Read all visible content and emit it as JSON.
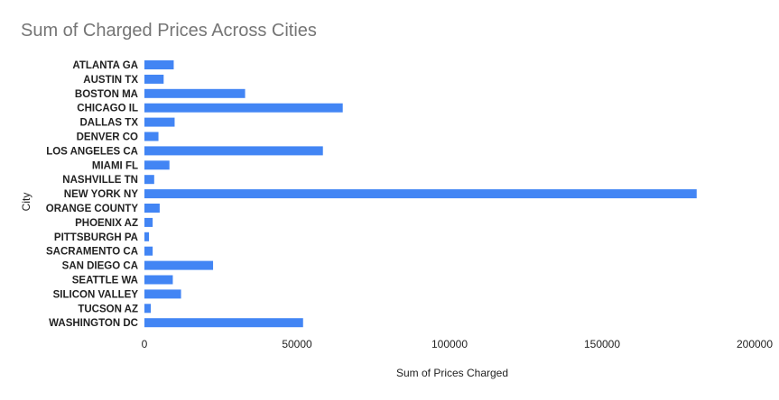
{
  "chart_data": {
    "type": "bar",
    "orientation": "horizontal",
    "title": "Sum of Charged Prices Across Cities",
    "xlabel": "Sum of Prices Charged",
    "ylabel": "City",
    "categories": [
      "ATLANTA GA",
      "AUSTIN TX",
      "BOSTON MA",
      "CHICAGO IL",
      "DALLAS TX",
      "DENVER CO",
      "LOS ANGELES CA",
      "MIAMI FL",
      "NASHVILLE TN",
      "NEW YORK NY",
      "ORANGE COUNTY",
      "PHOENIX AZ",
      "PITTSBURGH PA",
      "SACRAMENTO CA",
      "SAN DIEGO CA",
      "SEATTLE WA",
      "SILICON VALLEY",
      "TUCSON AZ",
      "WASHINGTON DC"
    ],
    "values": [
      9600,
      6300,
      33000,
      65000,
      9900,
      4600,
      58500,
      8200,
      3200,
      181000,
      5000,
      2700,
      1500,
      2700,
      22500,
      9300,
      12000,
      2100,
      52000
    ],
    "xlim": [
      0,
      200000
    ],
    "xticks": [
      "0",
      "50000",
      "100000",
      "150000",
      "200000"
    ],
    "xtick_values": [
      0,
      50000,
      100000,
      150000,
      200000
    ],
    "bar_color": "#4285f4",
    "grid": false,
    "legend": "none"
  }
}
